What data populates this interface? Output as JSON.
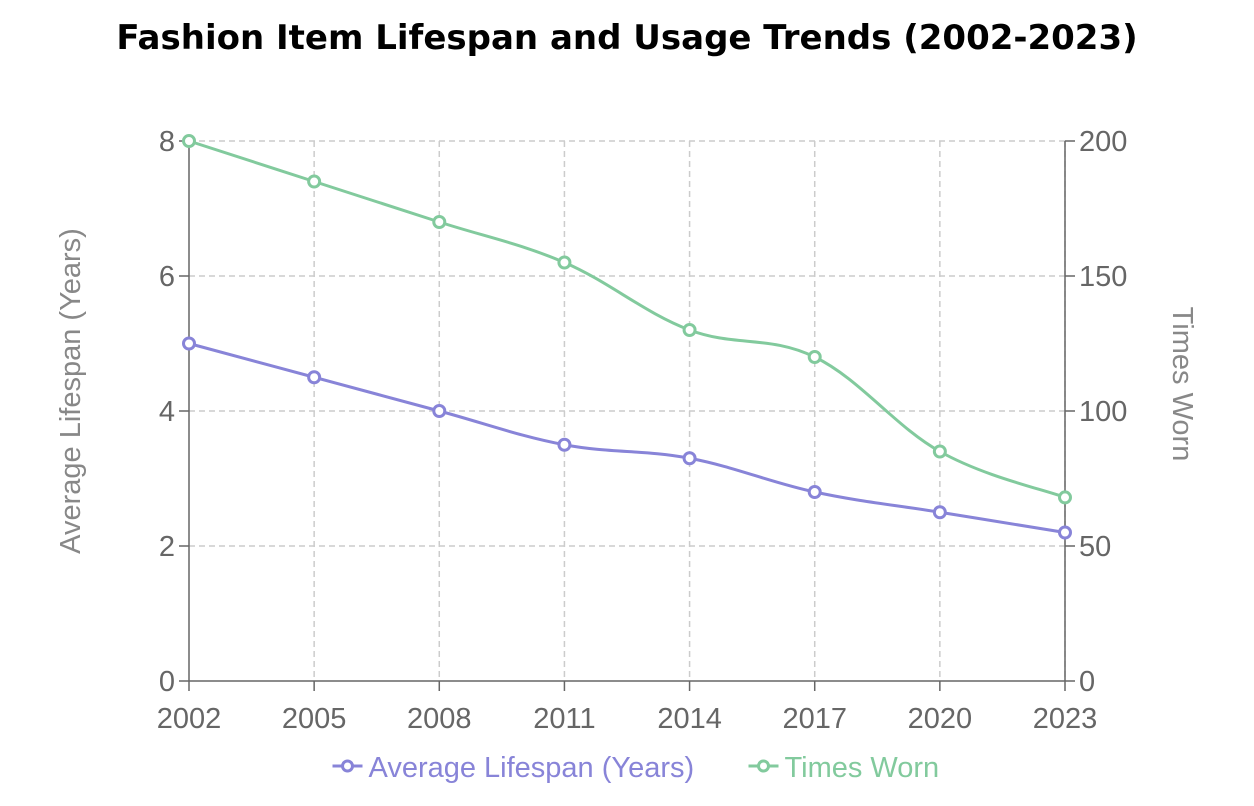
{
  "chart_data": {
    "type": "line",
    "title": "Fashion Item Lifespan and Usage Trends (2002-2023)",
    "x": [
      "2002",
      "2005",
      "2008",
      "2011",
      "2014",
      "2017",
      "2020",
      "2023"
    ],
    "y_left": {
      "label": "Average Lifespan (Years)",
      "lim": [
        0,
        8
      ],
      "ticks": [
        0,
        2,
        4,
        6,
        8
      ]
    },
    "y_right": {
      "label": "Times Worn",
      "lim": [
        0,
        200
      ],
      "ticks": [
        0,
        50,
        100,
        150,
        200
      ]
    },
    "grid": true,
    "legend_position": "bottom",
    "series": [
      {
        "name": "Average Lifespan (Years)",
        "axis": "left",
        "color": "#8884d8",
        "values": [
          5.0,
          4.5,
          4.0,
          3.5,
          3.3,
          2.8,
          2.5,
          2.2
        ]
      },
      {
        "name": "Times Worn",
        "axis": "right",
        "color": "#82ca9d",
        "values": [
          200,
          185,
          170,
          155,
          130,
          120,
          85,
          68
        ]
      }
    ]
  }
}
